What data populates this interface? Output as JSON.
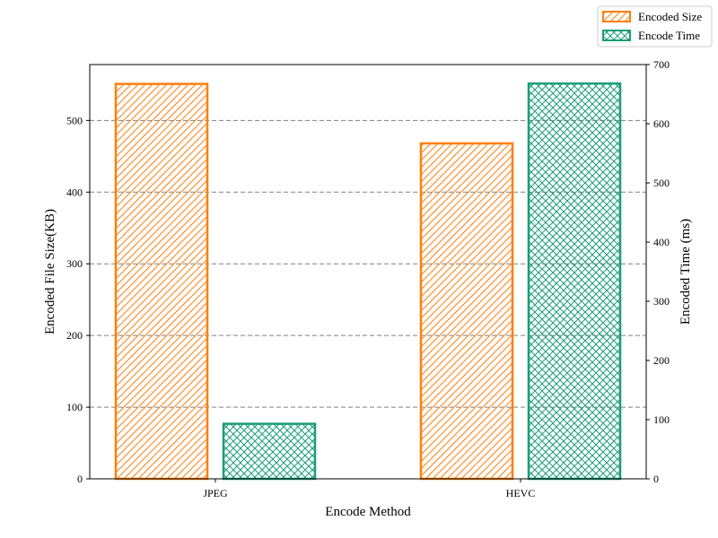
{
  "chart_data": {
    "type": "bar",
    "categories": [
      "JPEG",
      "HEVC"
    ],
    "series": [
      {
        "name": "Encoded Size",
        "axis": "left",
        "values": [
          551,
          468
        ],
        "color": "#ff7f0e",
        "hatch": "diagonal"
      },
      {
        "name": "Encode Time",
        "axis": "right",
        "values": [
          93,
          668
        ],
        "color": "#1b9e77",
        "hatch": "crosshatch"
      }
    ],
    "xlabel": "Encode Method",
    "ylabel": "Encoded File Size(KB)",
    "y2label": "Encoded Time (ms)",
    "ylim": [
      0,
      578
    ],
    "y2lim": [
      0,
      700
    ],
    "yticks": [
      0,
      100,
      200,
      300,
      400,
      500
    ],
    "y2ticks": [
      0,
      100,
      200,
      300,
      400,
      500,
      600,
      700
    ],
    "grid": "horizontal-dashed",
    "legend_position": "top-right"
  }
}
